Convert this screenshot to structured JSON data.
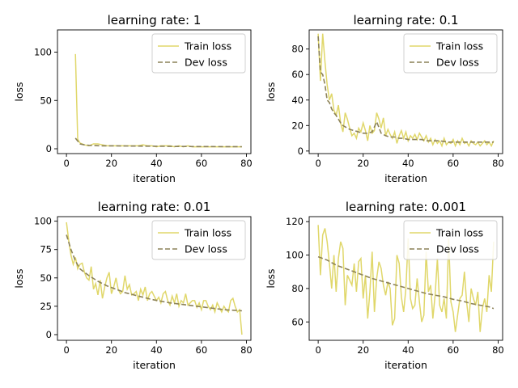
{
  "chart_data": [
    {
      "type": "line",
      "title": "learning rate: 1",
      "xlabel": "iteration",
      "ylabel": "loss",
      "xlim": [
        -4,
        82
      ],
      "ylim": [
        -5,
        123
      ],
      "xticks": [
        0,
        20,
        40,
        60,
        80
      ],
      "yticks": [
        0,
        50,
        100
      ],
      "legend": "top-right",
      "colors": {
        "train": "#e0d76a",
        "dev": "#8c8258"
      },
      "series": [
        {
          "name": "Train loss",
          "style": "solid",
          "x": [
            4,
            5,
            6,
            8,
            10,
            12,
            14,
            16,
            18,
            20,
            22,
            24,
            26,
            28,
            30,
            32,
            34,
            36,
            38,
            40,
            42,
            44,
            46,
            48,
            50,
            52,
            54,
            56,
            58,
            60,
            62,
            64,
            66,
            68,
            70,
            72,
            74,
            76,
            78
          ],
          "y": [
            98,
            10,
            6,
            4,
            3,
            5,
            5,
            4,
            3,
            3,
            3,
            3,
            3,
            3,
            3,
            3,
            4,
            3,
            3,
            2,
            3,
            3,
            3,
            2,
            3,
            2,
            3,
            2,
            2,
            2,
            2,
            2,
            2,
            2,
            2,
            2,
            2,
            2,
            2
          ]
        },
        {
          "name": "Dev loss",
          "style": "dashed",
          "x": [
            4,
            6,
            8,
            10,
            15,
            20,
            30,
            40,
            50,
            60,
            70,
            78
          ],
          "y": [
            11,
            5,
            4,
            3.5,
            3,
            3,
            2.8,
            2.6,
            2.4,
            2.3,
            2.2,
            2.1
          ]
        }
      ]
    },
    {
      "type": "line",
      "title": "learning rate: 0.1",
      "xlabel": "iteration",
      "ylabel": "loss",
      "xlim": [
        -4,
        82
      ],
      "ylim": [
        -2,
        95
      ],
      "xticks": [
        0,
        20,
        40,
        60,
        80
      ],
      "yticks": [
        0,
        20,
        40,
        60,
        80
      ],
      "legend": "top-right",
      "colors": {
        "train": "#e0d76a",
        "dev": "#8c8258"
      },
      "series": [
        {
          "name": "Train loss",
          "style": "solid",
          "x": [
            0,
            1,
            2,
            3,
            4,
            5,
            6,
            7,
            8,
            9,
            10,
            11,
            12,
            13,
            14,
            15,
            16,
            17,
            18,
            19,
            20,
            21,
            22,
            23,
            24,
            25,
            26,
            27,
            28,
            29,
            30,
            31,
            32,
            33,
            34,
            35,
            36,
            37,
            38,
            39,
            40,
            41,
            42,
            43,
            44,
            45,
            46,
            47,
            48,
            49,
            50,
            51,
            52,
            53,
            54,
            55,
            56,
            57,
            58,
            59,
            60,
            61,
            62,
            63,
            64,
            65,
            66,
            67,
            68,
            69,
            70,
            71,
            72,
            73,
            74,
            75,
            76,
            77,
            78
          ],
          "y": [
            92,
            55,
            92,
            70,
            52,
            40,
            45,
            32,
            28,
            36,
            22,
            15,
            30,
            25,
            18,
            12,
            14,
            10,
            18,
            15,
            22,
            16,
            8,
            20,
            14,
            16,
            30,
            25,
            18,
            26,
            12,
            17,
            13,
            10,
            15,
            6,
            12,
            16,
            10,
            15,
            8,
            12,
            10,
            13,
            9,
            14,
            11,
            8,
            12,
            7,
            10,
            5,
            9,
            6,
            8,
            4,
            10,
            5,
            7,
            6,
            9,
            4,
            8,
            5,
            10,
            6,
            7,
            4,
            8,
            6,
            5,
            7,
            4,
            6,
            8,
            5,
            7,
            4,
            8
          ]
        },
        {
          "name": "Dev loss",
          "style": "dashed",
          "x": [
            0,
            1,
            2,
            3,
            4,
            5,
            6,
            7,
            8,
            9,
            10,
            11,
            12,
            13,
            14,
            16,
            18,
            20,
            22,
            24,
            26,
            28,
            30,
            32,
            34,
            36,
            38,
            40,
            42,
            44,
            46,
            48,
            50,
            54,
            58,
            62,
            66,
            70,
            74,
            78
          ],
          "y": [
            90,
            62,
            60,
            52,
            40,
            38,
            33,
            30,
            28,
            25,
            22,
            20,
            19,
            18,
            17,
            16,
            15,
            14,
            14,
            15,
            23,
            14,
            12,
            11,
            11,
            10,
            10,
            9,
            9,
            9,
            9,
            8,
            8,
            8,
            7,
            7,
            7,
            7,
            7,
            7
          ]
        }
      ]
    },
    {
      "type": "line",
      "title": "learning rate: 0.01",
      "xlabel": "iteration",
      "ylabel": "loss",
      "xlim": [
        -4,
        82
      ],
      "ylim": [
        -5,
        104
      ],
      "xticks": [
        0,
        20,
        40,
        60,
        80
      ],
      "yticks": [
        0,
        25,
        50,
        75,
        100
      ],
      "legend": "top-right",
      "colors": {
        "train": "#e0d76a",
        "dev": "#8c8258"
      },
      "series": [
        {
          "name": "Train loss",
          "style": "solid",
          "x": [
            0,
            1,
            2,
            3,
            4,
            5,
            6,
            7,
            8,
            9,
            10,
            11,
            12,
            13,
            14,
            15,
            16,
            17,
            18,
            19,
            20,
            21,
            22,
            23,
            24,
            25,
            26,
            27,
            28,
            29,
            30,
            31,
            32,
            33,
            34,
            35,
            36,
            37,
            38,
            39,
            40,
            41,
            42,
            43,
            44,
            45,
            46,
            47,
            48,
            49,
            50,
            51,
            52,
            53,
            54,
            55,
            56,
            57,
            58,
            59,
            60,
            61,
            62,
            63,
            64,
            65,
            66,
            67,
            68,
            69,
            70,
            71,
            72,
            73,
            74,
            75,
            76,
            77,
            78
          ],
          "y": [
            99,
            83,
            70,
            62,
            68,
            58,
            62,
            63,
            55,
            50,
            48,
            60,
            40,
            45,
            35,
            48,
            32,
            42,
            50,
            55,
            36,
            42,
            50,
            40,
            36,
            38,
            52,
            40,
            44,
            35,
            36,
            38,
            30,
            40,
            35,
            42,
            30,
            36,
            38,
            34,
            30,
            33,
            28,
            36,
            38,
            30,
            26,
            34,
            28,
            36,
            25,
            30,
            28,
            36,
            26,
            28,
            30,
            30,
            24,
            28,
            22,
            30,
            30,
            25,
            22,
            26,
            20,
            28,
            24,
            20,
            25,
            22,
            20,
            30,
            32,
            25,
            20,
            22,
            0
          ]
        },
        {
          "name": "Dev loss",
          "style": "dashed",
          "x": [
            0,
            2,
            4,
            6,
            8,
            10,
            14,
            18,
            22,
            26,
            30,
            34,
            38,
            42,
            46,
            50,
            54,
            58,
            62,
            66,
            70,
            74,
            78
          ],
          "y": [
            88,
            75,
            65,
            58,
            55,
            52,
            47,
            43,
            40,
            37,
            35,
            33,
            31,
            29.5,
            28,
            27,
            26,
            25,
            24,
            23,
            22,
            21.5,
            21
          ]
        }
      ]
    },
    {
      "type": "line",
      "title": "learning rate: 0.001",
      "xlabel": "iteration",
      "ylabel": "loss",
      "xlim": [
        -4,
        82
      ],
      "ylim": [
        49,
        123
      ],
      "xticks": [
        0,
        20,
        40,
        60,
        80
      ],
      "yticks": [
        60,
        80,
        100,
        120
      ],
      "legend": "top-right",
      "colors": {
        "train": "#e0d76a",
        "dev": "#8c8258"
      },
      "series": [
        {
          "name": "Train loss",
          "style": "solid",
          "x": [
            0,
            1,
            2,
            3,
            4,
            5,
            6,
            7,
            8,
            9,
            10,
            11,
            12,
            13,
            14,
            15,
            16,
            17,
            18,
            19,
            20,
            21,
            22,
            23,
            24,
            25,
            26,
            27,
            28,
            29,
            30,
            31,
            32,
            33,
            34,
            35,
            36,
            37,
            38,
            39,
            40,
            41,
            42,
            43,
            44,
            45,
            46,
            47,
            48,
            49,
            50,
            51,
            52,
            53,
            54,
            55,
            56,
            57,
            58,
            59,
            60,
            61,
            62,
            63,
            64,
            65,
            66,
            67,
            68,
            69,
            70,
            71,
            72,
            73,
            74,
            75,
            76,
            77,
            78
          ],
          "y": [
            118,
            88,
            112,
            116,
            108,
            95,
            80,
            100,
            78,
            98,
            108,
            104,
            70,
            88,
            85,
            82,
            95,
            78,
            96,
            98,
            74,
            88,
            62,
            78,
            102,
            66,
            86,
            96,
            92,
            82,
            76,
            84,
            80,
            58,
            62,
            100,
            95,
            75,
            66,
            80,
            110,
            74,
            68,
            70,
            86,
            72,
            60,
            64,
            102,
            78,
            82,
            62,
            76,
            98,
            70,
            66,
            74,
            62,
            110,
            72,
            66,
            54,
            64,
            74,
            76,
            90,
            72,
            60,
            80,
            74,
            70,
            78,
            54,
            68,
            74,
            66,
            88,
            78,
            108
          ]
        },
        {
          "name": "Dev loss",
          "style": "dashed",
          "x": [
            0,
            4,
            8,
            12,
            16,
            20,
            24,
            28,
            32,
            36,
            40,
            44,
            48,
            52,
            56,
            60,
            64,
            68,
            72,
            76,
            78
          ],
          "y": [
            99,
            97,
            94,
            92,
            90,
            88,
            86,
            84.5,
            83,
            81.5,
            80,
            78.5,
            77,
            76,
            75,
            73.5,
            72.5,
            71,
            70,
            69,
            68
          ]
        }
      ]
    }
  ]
}
